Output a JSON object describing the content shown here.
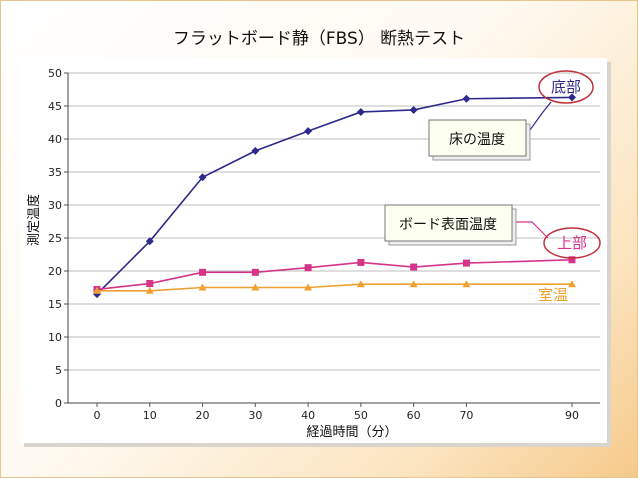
{
  "chart_data": {
    "type": "line",
    "title": "フラットボード静（FBS） 断熱テスト",
    "xlabel": "経過時間（分）",
    "ylabel": "測定温度",
    "x": [
      0,
      10,
      20,
      30,
      40,
      50,
      60,
      70,
      90
    ],
    "x_ticks": [
      "0",
      "10",
      "20",
      "30",
      "40",
      "50",
      "60",
      "70",
      "90"
    ],
    "y_ticks": [
      "0",
      "5",
      "10",
      "15",
      "20",
      "25",
      "30",
      "35",
      "40",
      "45",
      "50"
    ],
    "ylim": [
      0,
      50
    ],
    "grid": "horizontal",
    "series": [
      {
        "name": "底部",
        "color": "#2e2a8c",
        "marker": "diamond",
        "values": [
          16.5,
          24.5,
          34.2,
          38.2,
          41.2,
          44.1,
          44.4,
          46.1,
          46.3
        ]
      },
      {
        "name": "上部",
        "color": "#d6338a",
        "marker": "square",
        "values": [
          17.2,
          18.1,
          19.8,
          19.8,
          20.5,
          21.3,
          20.6,
          21.2,
          21.7
        ]
      },
      {
        "name": "室温",
        "color": "#f0a030",
        "marker": "triangle",
        "values": [
          17.0,
          17.0,
          17.5,
          17.5,
          17.5,
          18.0,
          18.0,
          18.0,
          18.0
        ]
      }
    ],
    "callouts": [
      "床の温度",
      "ボード表面温度"
    ]
  }
}
